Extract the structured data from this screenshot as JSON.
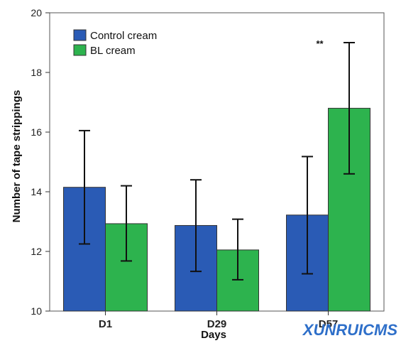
{
  "chart_data": {
    "type": "bar",
    "xlabel": "Days",
    "ylabel": "Number of tape strippings",
    "categories": [
      "D1",
      "D29",
      "D57"
    ],
    "ylim": [
      10,
      20
    ],
    "yticks": [
      10,
      12,
      14,
      16,
      18,
      20
    ],
    "legend_position": "top-left",
    "grid": false,
    "series": [
      {
        "name": "Control cream",
        "color": "#2a5bb5",
        "values": [
          14.15,
          12.87,
          13.22
        ],
        "error_low": [
          12.25,
          11.33,
          11.25
        ],
        "error_high": [
          16.05,
          14.4,
          15.18
        ]
      },
      {
        "name": "BL cream",
        "color": "#2db34e",
        "values": [
          12.93,
          12.05,
          16.8
        ],
        "error_low": [
          11.68,
          11.05,
          14.6
        ],
        "error_high": [
          14.2,
          13.08,
          19.0
        ]
      }
    ],
    "annotations": [
      {
        "text": "**",
        "category": "D57",
        "y": 19.0
      }
    ]
  },
  "watermark": {
    "text": "XUNRUICMS"
  }
}
